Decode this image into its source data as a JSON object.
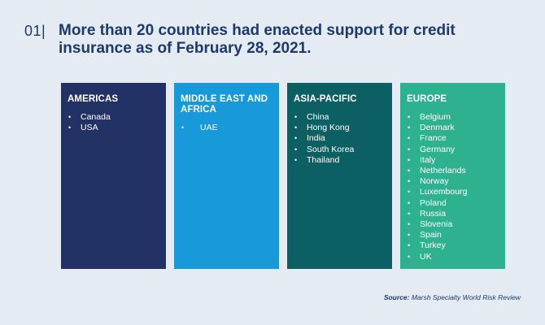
{
  "header": {
    "figure_number": "01|",
    "title": "More than 20 countries had enacted support for credit insurance as of February 28, 2021."
  },
  "regions": [
    {
      "title": "AMERICAS",
      "items": [
        "Canada",
        "USA"
      ]
    },
    {
      "title": "MIDDLE EAST AND AFRICA",
      "items": [
        "UAE"
      ]
    },
    {
      "title": "ASIA-PACIFIC",
      "items": [
        "China",
        "Hong Kong",
        "India",
        "South Korea",
        "Thailand"
      ]
    },
    {
      "title": "EUROPE",
      "items": [
        "Belgium",
        "Denmark",
        "France",
        "Germany",
        "Italy",
        "Netherlands",
        "Norway",
        "Luxembourg",
        "Poland",
        "Russia",
        "Slovenia",
        "Spain",
        "Turkey",
        "UK"
      ]
    }
  ],
  "source": {
    "label": "Source:",
    "text": "Marsh Specialty World Risk Review"
  },
  "colors": {
    "background": "#e4ebf2",
    "title": "#1c3a6e",
    "americas": "#223265",
    "middle_east_africa": "#1799da",
    "asia_pacific": "#0c5f63",
    "europe": "#2eb18f"
  }
}
